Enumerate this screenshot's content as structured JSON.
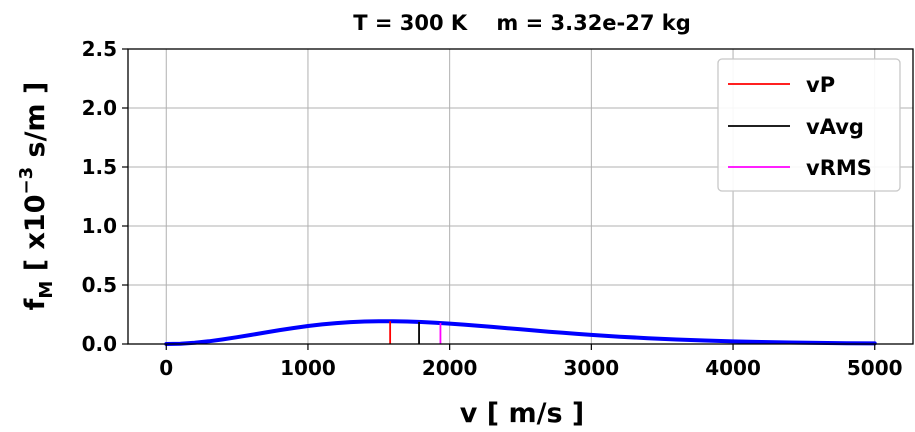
{
  "chart_data": {
    "type": "line",
    "title": "T = 300 K    m = 3.32e-27 kg",
    "xlabel": "v [ m/s ]",
    "ylabel": {
      "main": "f",
      "sub": "M",
      "bracket_open": "  [ x10",
      "sup": "−3",
      "unit": "  s/m ]"
    },
    "xlim": [
      -270,
      5270
    ],
    "ylim": [
      0,
      2.5
    ],
    "x_ticks": [
      "0",
      "1000",
      "2000",
      "3000",
      "4000",
      "5000"
    ],
    "y_ticks": [
      "0.0",
      "0.5",
      "1.0",
      "1.5",
      "2.0",
      "2.5"
    ],
    "grid": true,
    "legend_position": "top-right",
    "parameters": {
      "T": 300,
      "m": 3.32e-27
    },
    "curve": {
      "color": "#0000ff",
      "x": [
        0,
        100,
        200,
        300,
        400,
        500,
        600,
        700,
        800,
        900,
        1000,
        1100,
        1200,
        1300,
        1400,
        1500,
        1580,
        1600,
        1700,
        1800,
        1900,
        2000,
        2100,
        2200,
        2300,
        2400,
        2500,
        2600,
        2700,
        2800,
        2900,
        3000,
        3200,
        3400,
        3600,
        3800,
        4000,
        4200,
        4400,
        4600,
        4800,
        5000
      ],
      "y": [
        0,
        0.0027,
        0.0105,
        0.0228,
        0.0388,
        0.0573,
        0.0772,
        0.0976,
        0.1174,
        0.1359,
        0.1524,
        0.1664,
        0.1775,
        0.1856,
        0.1906,
        0.1928,
        0.1931,
        0.1929,
        0.1905,
        0.1862,
        0.1802,
        0.1727,
        0.1641,
        0.1547,
        0.1448,
        0.1346,
        0.1244,
        0.1143,
        0.1044,
        0.0949,
        0.0859,
        0.0774,
        0.0621,
        0.0491,
        0.0383,
        0.0295,
        0.0224,
        0.0168,
        0.0125,
        0.0092,
        0.0067,
        0.0048
      ]
    },
    "markers": [
      {
        "name": "vP",
        "x": 1580,
        "color": "#ff0000"
      },
      {
        "name": "vAvg",
        "x": 1784,
        "color": "#000000"
      },
      {
        "name": "vRMS",
        "x": 1935,
        "color": "#ff00ff"
      }
    ]
  }
}
